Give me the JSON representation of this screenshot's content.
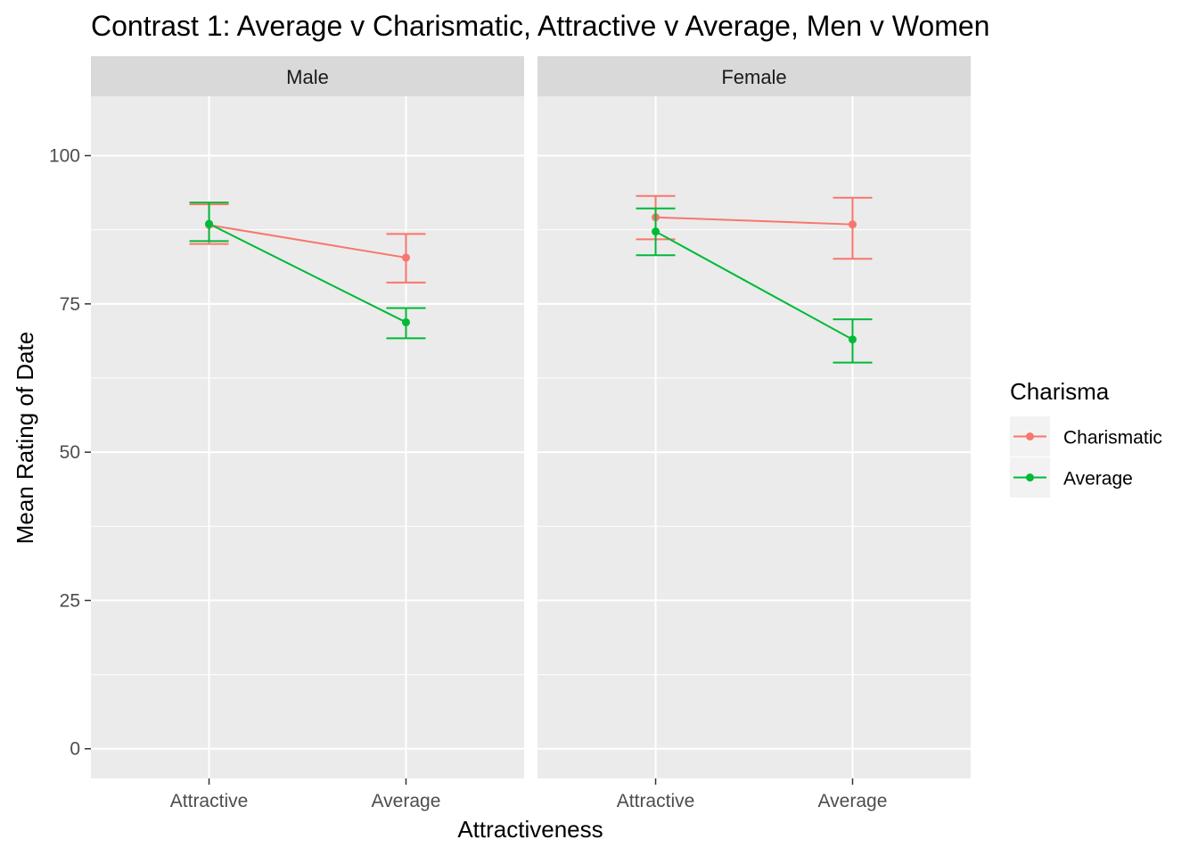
{
  "chart_data": {
    "type": "line",
    "title": "Contrast 1: Average v Charismatic, Attractive v Average, Men v Women",
    "xlabel": "Attractiveness",
    "ylabel": "Mean Rating of Date",
    "categories": [
      "Attractive",
      "Average"
    ],
    "ylim": [
      -5,
      110
    ],
    "yticks": [
      0,
      25,
      50,
      75,
      100
    ],
    "grid": true,
    "legend": {
      "title": "Charisma",
      "position": "right",
      "entries": [
        "Charismatic",
        "Average"
      ]
    },
    "colors": {
      "Charismatic": "#F8766D",
      "Average": "#00BA38"
    },
    "panels": [
      {
        "label": "Male",
        "series": [
          {
            "name": "Charismatic",
            "values": [
              88.3,
              82.8
            ],
            "lower": [
              85.1,
              78.6
            ],
            "upper": [
              91.8,
              86.8
            ]
          },
          {
            "name": "Average",
            "values": [
              88.5,
              71.9
            ],
            "lower": [
              85.6,
              69.2
            ],
            "upper": [
              92.1,
              74.3
            ]
          }
        ]
      },
      {
        "label": "Female",
        "series": [
          {
            "name": "Charismatic",
            "values": [
              89.6,
              88.4
            ],
            "lower": [
              85.9,
              82.6
            ],
            "upper": [
              93.2,
              92.9
            ]
          },
          {
            "name": "Average",
            "values": [
              87.2,
              69.0
            ],
            "lower": [
              83.2,
              65.1
            ],
            "upper": [
              91.1,
              72.4
            ]
          }
        ]
      }
    ]
  }
}
